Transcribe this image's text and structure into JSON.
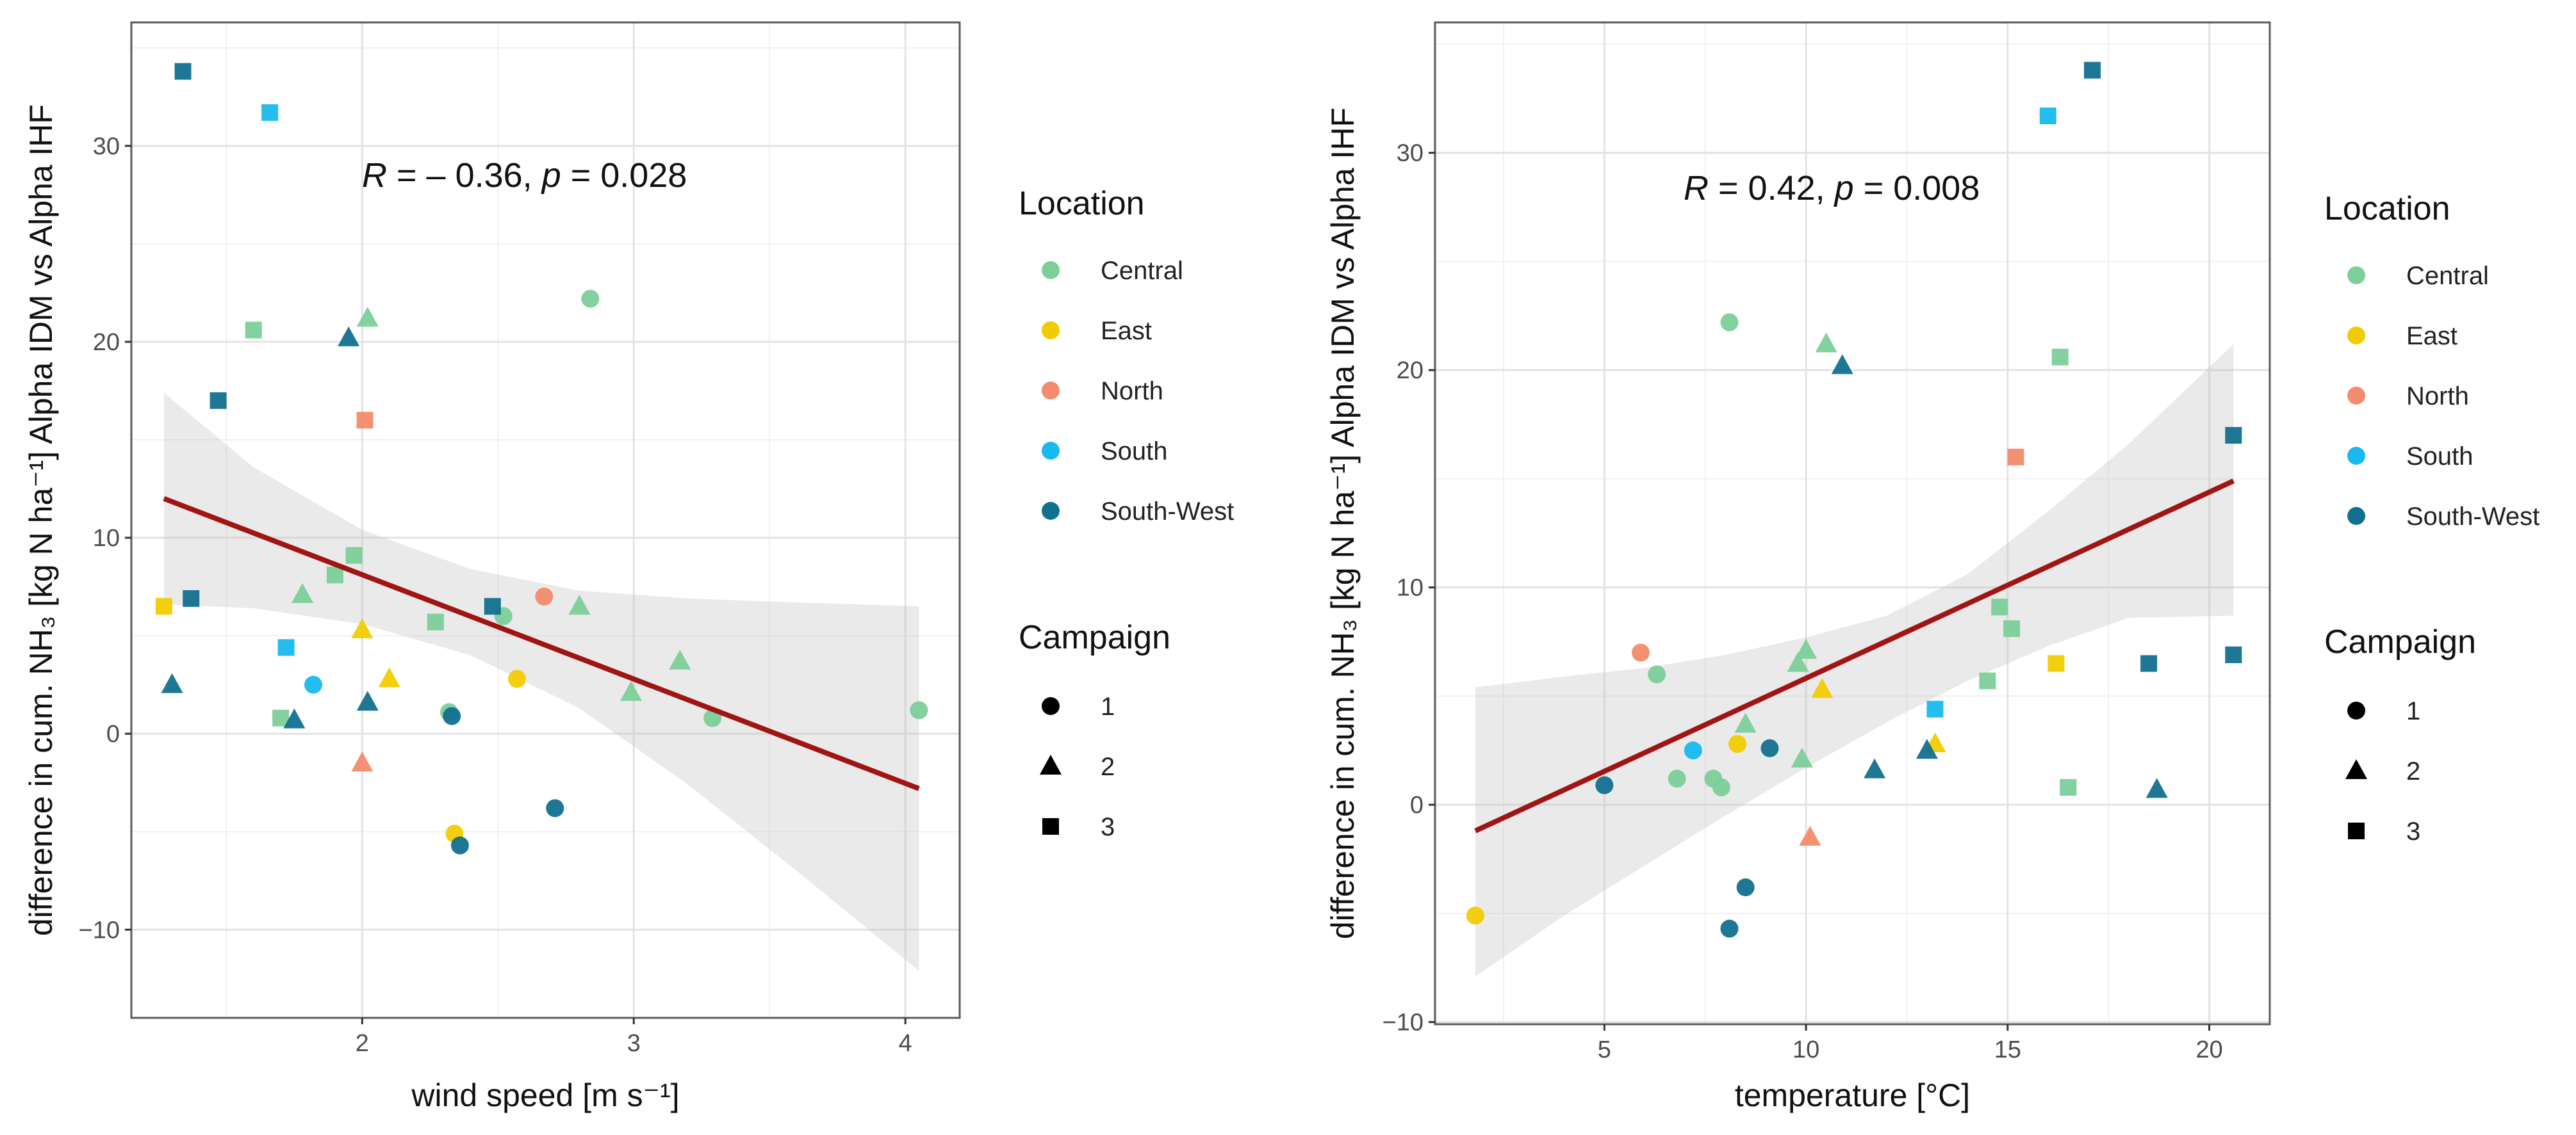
{
  "figure": {
    "y_axis_title": "difference in cum. NH₃ [kg N ha⁻¹] Alpha IDM vs Alpha IHF"
  },
  "legend": {
    "location_title": "Location",
    "locations": [
      {
        "name": "Central",
        "color": "#7ccf99"
      },
      {
        "name": "East",
        "color": "#f2cc00"
      },
      {
        "name": "North",
        "color": "#f38b6c"
      },
      {
        "name": "South",
        "color": "#17b9ee"
      },
      {
        "name": "South-West",
        "color": "#11708f"
      }
    ],
    "campaign_title": "Campaign",
    "campaigns": [
      {
        "label": "1",
        "shape": "circle"
      },
      {
        "label": "2",
        "shape": "triangle"
      },
      {
        "label": "3",
        "shape": "square"
      }
    ]
  },
  "chart_data": [
    {
      "type": "scatter",
      "xlabel": "wind speed [m s⁻¹]",
      "ylabel": "difference in cum. NH₃ [kg N ha⁻¹] Alpha IDM vs Alpha IHF",
      "annotation": "R = – 0.36, p = 0.028",
      "annotation_parts": {
        "r_label": "R",
        "r_eq": " = – 0.36, ",
        "p_label": "p",
        "p_eq": " = 0.028"
      },
      "xlim": [
        1.15,
        4.2
      ],
      "ylim": [
        -14.5,
        36.3
      ],
      "xticks": [
        2,
        3,
        4
      ],
      "yticks": [
        -10,
        0,
        10,
        20,
        30
      ],
      "grid": true,
      "fit": {
        "type": "linear",
        "x": [
          1.27,
          4.05
        ],
        "y": [
          12.0,
          -2.8
        ],
        "color": "#a01414"
      },
      "ci_band": {
        "x": [
          1.27,
          1.6,
          2.0,
          2.4,
          2.8,
          3.2,
          3.6,
          4.05
        ],
        "upper": [
          17.4,
          13.6,
          10.4,
          8.4,
          7.3,
          6.9,
          6.7,
          6.5
        ],
        "lower": [
          6.6,
          6.4,
          5.6,
          4.0,
          1.3,
          -2.6,
          -7.0,
          -12.1
        ]
      },
      "points": [
        {
          "x": 1.6,
          "y": 20.6,
          "location": "Central",
          "campaign": 3
        },
        {
          "x": 1.7,
          "y": 0.8,
          "location": "Central",
          "campaign": 3
        },
        {
          "x": 1.9,
          "y": 8.1,
          "location": "Central",
          "campaign": 3
        },
        {
          "x": 1.97,
          "y": 9.1,
          "location": "Central",
          "campaign": 3
        },
        {
          "x": 2.27,
          "y": 5.7,
          "location": "Central",
          "campaign": 3
        },
        {
          "x": 2.02,
          "y": 21.2,
          "location": "Central",
          "campaign": 2
        },
        {
          "x": 1.78,
          "y": 7.1,
          "location": "Central",
          "campaign": 2
        },
        {
          "x": 2.8,
          "y": 6.5,
          "location": "Central",
          "campaign": 2
        },
        {
          "x": 3.17,
          "y": 3.7,
          "location": "Central",
          "campaign": 2
        },
        {
          "x": 2.99,
          "y": 2.1,
          "location": "Central",
          "campaign": 2
        },
        {
          "x": 2.84,
          "y": 22.2,
          "location": "Central",
          "campaign": 1
        },
        {
          "x": 2.52,
          "y": 6.0,
          "location": "Central",
          "campaign": 1
        },
        {
          "x": 2.32,
          "y": 1.1,
          "location": "Central",
          "campaign": 1
        },
        {
          "x": 3.29,
          "y": 0.8,
          "location": "Central",
          "campaign": 1
        },
        {
          "x": 4.05,
          "y": 1.2,
          "location": "Central",
          "campaign": 1
        },
        {
          "x": 1.27,
          "y": 6.5,
          "location": "East",
          "campaign": 3
        },
        {
          "x": 2.0,
          "y": 5.3,
          "location": "East",
          "campaign": 2
        },
        {
          "x": 2.1,
          "y": 2.8,
          "location": "East",
          "campaign": 2
        },
        {
          "x": 2.57,
          "y": 2.8,
          "location": "East",
          "campaign": 1
        },
        {
          "x": 2.34,
          "y": -5.1,
          "location": "East",
          "campaign": 1
        },
        {
          "x": 2.01,
          "y": 16.0,
          "location": "North",
          "campaign": 3
        },
        {
          "x": 2.0,
          "y": -1.5,
          "location": "North",
          "campaign": 2
        },
        {
          "x": 2.67,
          "y": 7.0,
          "location": "North",
          "campaign": 1
        },
        {
          "x": 1.66,
          "y": 31.7,
          "location": "South",
          "campaign": 3
        },
        {
          "x": 1.72,
          "y": 4.4,
          "location": "South",
          "campaign": 3
        },
        {
          "x": 1.82,
          "y": 2.5,
          "location": "South",
          "campaign": 1
        },
        {
          "x": 1.34,
          "y": 33.8,
          "location": "South-West",
          "campaign": 3
        },
        {
          "x": 1.47,
          "y": 17.0,
          "location": "South-West",
          "campaign": 3
        },
        {
          "x": 1.37,
          "y": 6.9,
          "location": "South-West",
          "campaign": 3
        },
        {
          "x": 2.48,
          "y": 6.5,
          "location": "South-West",
          "campaign": 3
        },
        {
          "x": 1.95,
          "y": 20.2,
          "location": "South-West",
          "campaign": 2
        },
        {
          "x": 1.3,
          "y": 2.5,
          "location": "South-West",
          "campaign": 2
        },
        {
          "x": 1.75,
          "y": 0.7,
          "location": "South-West",
          "campaign": 2
        },
        {
          "x": 2.02,
          "y": 1.6,
          "location": "South-West",
          "campaign": 2
        },
        {
          "x": 2.33,
          "y": 0.9,
          "location": "South-West",
          "campaign": 1
        },
        {
          "x": 2.36,
          "y": -5.7,
          "location": "South-West",
          "campaign": 1
        },
        {
          "x": 2.71,
          "y": -3.8,
          "location": "South-West",
          "campaign": 1
        }
      ]
    },
    {
      "type": "scatter",
      "xlabel": "temperature [°C]",
      "ylabel": "difference in cum. NH₃ [kg N ha⁻¹] Alpha IDM vs Alpha IHF",
      "annotation": "R = 0.42, p = 0.008",
      "annotation_parts": {
        "r_label": "R",
        "r_eq": " = 0.42, ",
        "p_label": "p",
        "p_eq": " = 0.008"
      },
      "xlim": [
        0.8,
        21.5
      ],
      "ylim": [
        -10.1,
        36.0
      ],
      "xticks": [
        5,
        10,
        15,
        20
      ],
      "yticks": [
        -10,
        0,
        10,
        20,
        30
      ],
      "grid": true,
      "fit": {
        "type": "linear",
        "x": [
          1.8,
          20.6
        ],
        "y": [
          -1.2,
          14.9
        ],
        "color": "#a01414"
      },
      "ci_band": {
        "x": [
          1.8,
          4,
          6,
          8,
          10,
          12,
          14,
          16,
          18,
          20.6
        ],
        "upper": [
          5.4,
          5.9,
          6.3,
          6.9,
          7.7,
          8.7,
          10.6,
          13.5,
          16.6,
          21.2
        ],
        "lower": [
          -7.9,
          -5.1,
          -2.8,
          -0.5,
          1.7,
          3.8,
          5.7,
          7.3,
          8.6,
          8.7
        ]
      },
      "points": [
        {
          "x": 16.3,
          "y": 20.6,
          "location": "Central",
          "campaign": 3
        },
        {
          "x": 14.8,
          "y": 9.1,
          "location": "Central",
          "campaign": 3
        },
        {
          "x": 15.1,
          "y": 8.1,
          "location": "Central",
          "campaign": 3
        },
        {
          "x": 14.5,
          "y": 5.7,
          "location": "Central",
          "campaign": 3
        },
        {
          "x": 16.5,
          "y": 0.8,
          "location": "Central",
          "campaign": 3
        },
        {
          "x": 10.5,
          "y": 21.2,
          "location": "Central",
          "campaign": 2
        },
        {
          "x": 10.0,
          "y": 7.1,
          "location": "Central",
          "campaign": 2
        },
        {
          "x": 9.8,
          "y": 6.5,
          "location": "Central",
          "campaign": 2
        },
        {
          "x": 8.5,
          "y": 3.7,
          "location": "Central",
          "campaign": 2
        },
        {
          "x": 9.9,
          "y": 2.1,
          "location": "Central",
          "campaign": 2
        },
        {
          "x": 8.1,
          "y": 22.2,
          "location": "Central",
          "campaign": 1
        },
        {
          "x": 6.3,
          "y": 6.0,
          "location": "Central",
          "campaign": 1
        },
        {
          "x": 6.8,
          "y": 1.2,
          "location": "Central",
          "campaign": 1
        },
        {
          "x": 7.7,
          "y": 1.2,
          "location": "Central",
          "campaign": 1
        },
        {
          "x": 7.9,
          "y": 0.8,
          "location": "Central",
          "campaign": 1
        },
        {
          "x": 16.2,
          "y": 6.5,
          "location": "East",
          "campaign": 3
        },
        {
          "x": 10.4,
          "y": 5.3,
          "location": "East",
          "campaign": 2
        },
        {
          "x": 13.2,
          "y": 2.8,
          "location": "East",
          "campaign": 2
        },
        {
          "x": 8.3,
          "y": 2.8,
          "location": "East",
          "campaign": 1
        },
        {
          "x": 1.8,
          "y": -5.1,
          "location": "East",
          "campaign": 1
        },
        {
          "x": 15.2,
          "y": 16.0,
          "location": "North",
          "campaign": 3
        },
        {
          "x": 10.1,
          "y": -1.5,
          "location": "North",
          "campaign": 2
        },
        {
          "x": 5.9,
          "y": 7.0,
          "location": "North",
          "campaign": 1
        },
        {
          "x": 16.0,
          "y": 31.7,
          "location": "South",
          "campaign": 3
        },
        {
          "x": 13.2,
          "y": 4.4,
          "location": "South",
          "campaign": 3
        },
        {
          "x": 7.2,
          "y": 2.5,
          "location": "South",
          "campaign": 1
        },
        {
          "x": 17.1,
          "y": 33.8,
          "location": "South-West",
          "campaign": 3
        },
        {
          "x": 20.6,
          "y": 17.0,
          "location": "South-West",
          "campaign": 3
        },
        {
          "x": 20.6,
          "y": 6.9,
          "location": "South-West",
          "campaign": 3
        },
        {
          "x": 18.5,
          "y": 6.5,
          "location": "South-West",
          "campaign": 3
        },
        {
          "x": 10.9,
          "y": 20.2,
          "location": "South-West",
          "campaign": 2
        },
        {
          "x": 11.7,
          "y": 1.6,
          "location": "South-West",
          "campaign": 2
        },
        {
          "x": 13.0,
          "y": 2.5,
          "location": "South-West",
          "campaign": 2
        },
        {
          "x": 18.7,
          "y": 0.7,
          "location": "South-West",
          "campaign": 2
        },
        {
          "x": 5.0,
          "y": 0.9,
          "location": "South-West",
          "campaign": 1
        },
        {
          "x": 9.1,
          "y": 2.6,
          "location": "South-West",
          "campaign": 1
        },
        {
          "x": 8.5,
          "y": -3.8,
          "location": "South-West",
          "campaign": 1
        },
        {
          "x": 8.1,
          "y": -5.7,
          "location": "South-West",
          "campaign": 1
        }
      ]
    }
  ]
}
